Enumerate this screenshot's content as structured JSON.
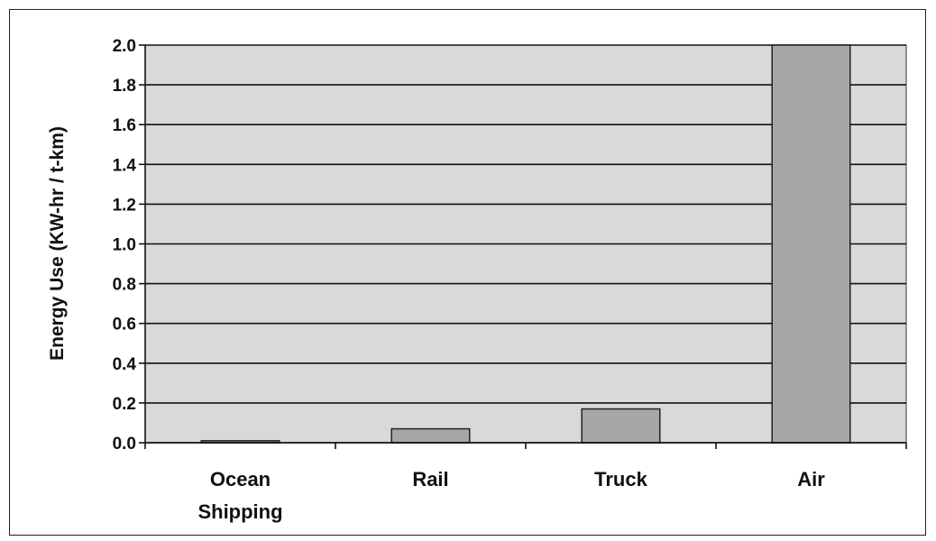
{
  "chart_data": {
    "type": "bar",
    "title": "",
    "xlabel": "",
    "ylabel": "Energy Use (KW-hr / t-km)",
    "categories": [
      [
        "Ocean",
        "Shipping"
      ],
      [
        "Rail"
      ],
      [
        "Truck"
      ],
      [
        "Air"
      ]
    ],
    "values": [
      0.01,
      0.07,
      0.17,
      2.0
    ],
    "ylim": [
      0,
      2.0
    ],
    "yticks": [
      "0.0",
      "0.2",
      "0.4",
      "0.6",
      "0.8",
      "1.0",
      "1.2",
      "1.4",
      "1.6",
      "1.8",
      "2.0"
    ],
    "grid": true,
    "legend": "none",
    "colors": {
      "plot_background": "#d9d9d9",
      "bar_fill": "#a6a6a6",
      "bar_stroke": "#222222",
      "gridline": "#111111"
    }
  }
}
